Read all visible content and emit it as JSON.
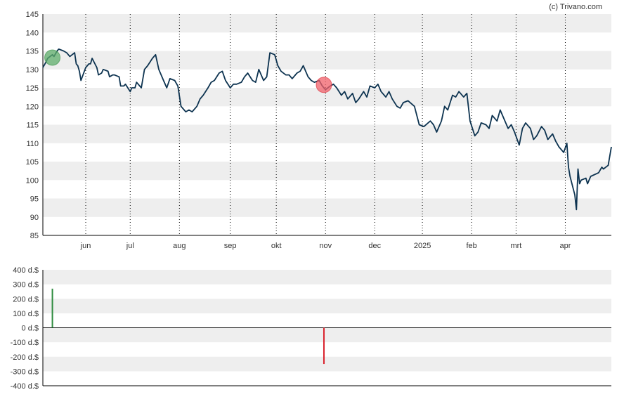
{
  "credit": "(c) Trivano.com",
  "colors": {
    "line": "#0d3350",
    "band": "#eeeeee",
    "buy": "#2e8b3e",
    "sell": "#d9232e",
    "buy_marker": "#5fae6b",
    "sell_marker": "#f0606a",
    "grid": "#000000"
  },
  "chart_data": [
    {
      "type": "line",
      "title": "",
      "ylim": [
        85,
        145
      ],
      "y_ticks": [
        "145",
        "140",
        "135",
        "130",
        "125",
        "120",
        "115",
        "110",
        "105",
        "100",
        "95",
        "90",
        "85"
      ],
      "x_range": [
        "2024-05-07",
        "2025-04-30"
      ],
      "x_ticks": [
        {
          "label": "jun",
          "date": "2024-06-03"
        },
        {
          "label": "jul",
          "date": "2024-07-01"
        },
        {
          "label": "aug",
          "date": "2024-08-01"
        },
        {
          "label": "sep",
          "date": "2024-09-02"
        },
        {
          "label": "okt",
          "date": "2024-10-01"
        },
        {
          "label": "nov",
          "date": "2024-11-01"
        },
        {
          "label": "dec",
          "date": "2024-12-02"
        },
        {
          "label": "2025",
          "date": "2025-01-01"
        },
        {
          "label": "feb",
          "date": "2025-02-01"
        },
        {
          "label": "mrt",
          "date": "2025-03-01"
        },
        {
          "label": "apr",
          "date": "2025-04-01"
        }
      ],
      "series": [
        {
          "points": [
            [
              "2024-05-07",
              130.5
            ],
            [
              "2024-05-09",
              132
            ],
            [
              "2024-05-10",
              133
            ],
            [
              "2024-05-13",
              134
            ],
            [
              "2024-05-14",
              133.5
            ],
            [
              "2024-05-16",
              135
            ],
            [
              "2024-05-17",
              135.5
            ],
            [
              "2024-05-20",
              135
            ],
            [
              "2024-05-22",
              134.5
            ],
            [
              "2024-05-23",
              134
            ],
            [
              "2024-05-24",
              133.5
            ],
            [
              "2024-05-27",
              134.5
            ],
            [
              "2024-05-28",
              131.5
            ],
            [
              "2024-05-29",
              131
            ],
            [
              "2024-05-30",
              129.5
            ],
            [
              "2024-05-31",
              127
            ],
            [
              "2024-06-03",
              130.5
            ],
            [
              "2024-06-05",
              131.5
            ],
            [
              "2024-06-06",
              131.5
            ],
            [
              "2024-06-07",
              133
            ],
            [
              "2024-06-10",
              130.5
            ],
            [
              "2024-06-11",
              128.5
            ],
            [
              "2024-06-13",
              129
            ],
            [
              "2024-06-14",
              130
            ],
            [
              "2024-06-17",
              129.5
            ],
            [
              "2024-06-18",
              128
            ],
            [
              "2024-06-20",
              128.5
            ],
            [
              "2024-06-21",
              128.5
            ],
            [
              "2024-06-24",
              128
            ],
            [
              "2024-06-25",
              125.5
            ],
            [
              "2024-06-27",
              125.5
            ],
            [
              "2024-06-28",
              126
            ],
            [
              "2024-07-01",
              124
            ],
            [
              "2024-07-02",
              125
            ],
            [
              "2024-07-04",
              125
            ],
            [
              "2024-07-05",
              126.5
            ],
            [
              "2024-07-08",
              125
            ],
            [
              "2024-07-10",
              130
            ],
            [
              "2024-07-12",
              131
            ],
            [
              "2024-07-15",
              133
            ],
            [
              "2024-07-17",
              134
            ],
            [
              "2024-07-19",
              130
            ],
            [
              "2024-07-22",
              127
            ],
            [
              "2024-07-24",
              125
            ],
            [
              "2024-07-26",
              127.5
            ],
            [
              "2024-07-29",
              127
            ],
            [
              "2024-07-31",
              125.5
            ],
            [
              "2024-08-02",
              120
            ],
            [
              "2024-08-05",
              118.5
            ],
            [
              "2024-08-07",
              119
            ],
            [
              "2024-08-09",
              118.5
            ],
            [
              "2024-08-12",
              120
            ],
            [
              "2024-08-14",
              122
            ],
            [
              "2024-08-16",
              123
            ],
            [
              "2024-08-19",
              125
            ],
            [
              "2024-08-21",
              126.5
            ],
            [
              "2024-08-23",
              127
            ],
            [
              "2024-08-26",
              129
            ],
            [
              "2024-08-28",
              129.5
            ],
            [
              "2024-08-30",
              127
            ],
            [
              "2024-09-02",
              125
            ],
            [
              "2024-09-04",
              126
            ],
            [
              "2024-09-06",
              126
            ],
            [
              "2024-09-09",
              126.5
            ],
            [
              "2024-09-11",
              128
            ],
            [
              "2024-09-13",
              129
            ],
            [
              "2024-09-16",
              127
            ],
            [
              "2024-09-18",
              126.5
            ],
            [
              "2024-09-20",
              130
            ],
            [
              "2024-09-23",
              127
            ],
            [
              "2024-09-25",
              128
            ],
            [
              "2024-09-27",
              134.5
            ],
            [
              "2024-09-30",
              134
            ],
            [
              "2024-10-02",
              131
            ],
            [
              "2024-10-04",
              129.5
            ],
            [
              "2024-10-07",
              128.5
            ],
            [
              "2024-10-09",
              128.5
            ],
            [
              "2024-10-11",
              127.5
            ],
            [
              "2024-10-14",
              129
            ],
            [
              "2024-10-16",
              129.5
            ],
            [
              "2024-10-18",
              131
            ],
            [
              "2024-10-21",
              128
            ],
            [
              "2024-10-23",
              127
            ],
            [
              "2024-10-25",
              126.5
            ],
            [
              "2024-10-28",
              127
            ],
            [
              "2024-10-30",
              125.5
            ],
            [
              "2024-11-01",
              124.5
            ],
            [
              "2024-11-04",
              125.5
            ],
            [
              "2024-11-06",
              126
            ],
            [
              "2024-11-08",
              125
            ],
            [
              "2024-11-11",
              123
            ],
            [
              "2024-11-13",
              124
            ],
            [
              "2024-11-15",
              122
            ],
            [
              "2024-11-18",
              123.5
            ],
            [
              "2024-11-20",
              121
            ],
            [
              "2024-11-22",
              122
            ],
            [
              "2024-11-25",
              124
            ],
            [
              "2024-11-27",
              122.5
            ],
            [
              "2024-11-29",
              125.5
            ],
            [
              "2024-12-02",
              125
            ],
            [
              "2024-12-04",
              126
            ],
            [
              "2024-12-06",
              124
            ],
            [
              "2024-12-09",
              122.5
            ],
            [
              "2024-12-11",
              124
            ],
            [
              "2024-12-13",
              122
            ],
            [
              "2024-12-16",
              120
            ],
            [
              "2024-12-18",
              119.5
            ],
            [
              "2024-12-20",
              121
            ],
            [
              "2024-12-23",
              121.5
            ],
            [
              "2024-12-27",
              120
            ],
            [
              "2024-12-30",
              115
            ],
            [
              "2025-01-02",
              114.5
            ],
            [
              "2025-01-06",
              116
            ],
            [
              "2025-01-08",
              115
            ],
            [
              "2025-01-10",
              113
            ],
            [
              "2025-01-13",
              116
            ],
            [
              "2025-01-15",
              120
            ],
            [
              "2025-01-17",
              119
            ],
            [
              "2025-01-20",
              123
            ],
            [
              "2025-01-22",
              122.5
            ],
            [
              "2025-01-24",
              124
            ],
            [
              "2025-01-27",
              122.5
            ],
            [
              "2025-01-29",
              123.5
            ],
            [
              "2025-01-31",
              116
            ],
            [
              "2025-02-03",
              112
            ],
            [
              "2025-02-05",
              113
            ],
            [
              "2025-02-07",
              115.5
            ],
            [
              "2025-02-10",
              115
            ],
            [
              "2025-02-12",
              114
            ],
            [
              "2025-02-14",
              117.5
            ],
            [
              "2025-02-17",
              116
            ],
            [
              "2025-02-19",
              119
            ],
            [
              "2025-02-21",
              117
            ],
            [
              "2025-02-24",
              114
            ],
            [
              "2025-02-26",
              115
            ],
            [
              "2025-02-28",
              113
            ],
            [
              "2025-03-03",
              109.5
            ],
            [
              "2025-03-05",
              114
            ],
            [
              "2025-03-07",
              115.5
            ],
            [
              "2025-03-10",
              114
            ],
            [
              "2025-03-12",
              111
            ],
            [
              "2025-03-14",
              112
            ],
            [
              "2025-03-17",
              114.5
            ],
            [
              "2025-03-19",
              113.5
            ],
            [
              "2025-03-21",
              111
            ],
            [
              "2025-03-24",
              112.5
            ],
            [
              "2025-03-26",
              110.5
            ],
            [
              "2025-03-28",
              109
            ],
            [
              "2025-03-31",
              107.5
            ],
            [
              "2025-04-02",
              110
            ],
            [
              "2025-04-03",
              103.5
            ],
            [
              "2025-04-04",
              101
            ],
            [
              "2025-04-07",
              96
            ],
            [
              "2025-04-08",
              92
            ],
            [
              "2025-04-09",
              103
            ],
            [
              "2025-04-10",
              99
            ],
            [
              "2025-04-11",
              100
            ],
            [
              "2025-04-14",
              100.5
            ],
            [
              "2025-04-15",
              99
            ],
            [
              "2025-04-17",
              101
            ],
            [
              "2025-04-22",
              102
            ],
            [
              "2025-04-24",
              103.5
            ],
            [
              "2025-04-25",
              103
            ],
            [
              "2025-04-28",
              104
            ],
            [
              "2025-04-30",
              109
            ]
          ]
        }
      ],
      "markers": [
        {
          "type": "buy",
          "date": "2024-05-13",
          "value": 133.2
        },
        {
          "type": "sell",
          "date": "2024-10-31",
          "value": 125.8
        }
      ]
    },
    {
      "type": "bar",
      "ylim": [
        -400,
        400
      ],
      "y_ticks": [
        "400 d.$",
        "300 d.$",
        "200 d.$",
        "100 d.$",
        "0 d.$",
        "-100 d.$",
        "-200 d.$",
        "-300 d.$",
        "-400 d.$"
      ],
      "bars": [
        {
          "date": "2024-05-13",
          "value": 270,
          "type": "buy"
        },
        {
          "date": "2024-10-31",
          "value": -250,
          "type": "sell"
        }
      ]
    }
  ]
}
